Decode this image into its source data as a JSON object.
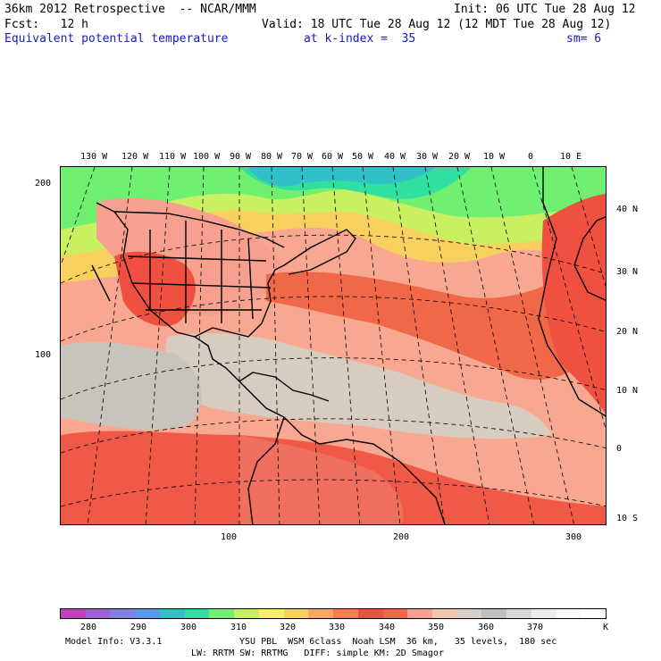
{
  "header": {
    "line1_left": "36km 2012 Retrospective  -- NCAR/MMM",
    "line1_right": "Init: 06 UTC Tue 28 Aug 12",
    "line2_left": "Fcst:   12 h",
    "line2_right": "Valid: 18 UTC Tue 28 Aug 12 (12 MDT Tue 28 Aug 12)",
    "line3_field": "Equivalent potential temperature",
    "line3_kindex": "at k-index =  35",
    "line3_sm": "sm= 6"
  },
  "map": {
    "lon_labels": [
      "130 W",
      "120 W",
      "110 W",
      "100 W",
      "90 W",
      "80 W",
      "70 W",
      "60 W",
      "50 W",
      "40 W",
      "30 W",
      "20 W",
      "10 W",
      "0",
      "10 E"
    ],
    "lat_labels": [
      "40 N",
      "30 N",
      "20 N",
      "10 N",
      "0",
      "10 S"
    ],
    "grid_y_labels": [
      "200",
      "100"
    ],
    "grid_x_labels": [
      "100",
      "200",
      "300"
    ]
  },
  "colorbar": {
    "colors": [
      "#c040c0",
      "#a060d8",
      "#8080e0",
      "#5a9ae8",
      "#30c0c8",
      "#30e0a0",
      "#70f070",
      "#c8f060",
      "#f8f060",
      "#f8d060",
      "#f8a860",
      "#f88050",
      "#f05040",
      "#f06848",
      "#f8a090",
      "#f0c8b0",
      "#d8d0c8",
      "#c0c0c0",
      "#d8d8d8",
      "#ececec",
      "#f8f8f8",
      "#ffffff"
    ],
    "labels": [
      "280",
      "290",
      "300",
      "310",
      "320",
      "330",
      "340",
      "350",
      "360",
      "370",
      "K"
    ]
  },
  "footer": {
    "line1_left": "Model Info: V3.3.1",
    "line1_right": "YSU PBL  WSM 6class  Noah LSM  36 km,   35 levels,  180 sec",
    "line2": "LW: RRTM SW: RRTMG   DIFF: simple KM: 2D Smagor"
  }
}
